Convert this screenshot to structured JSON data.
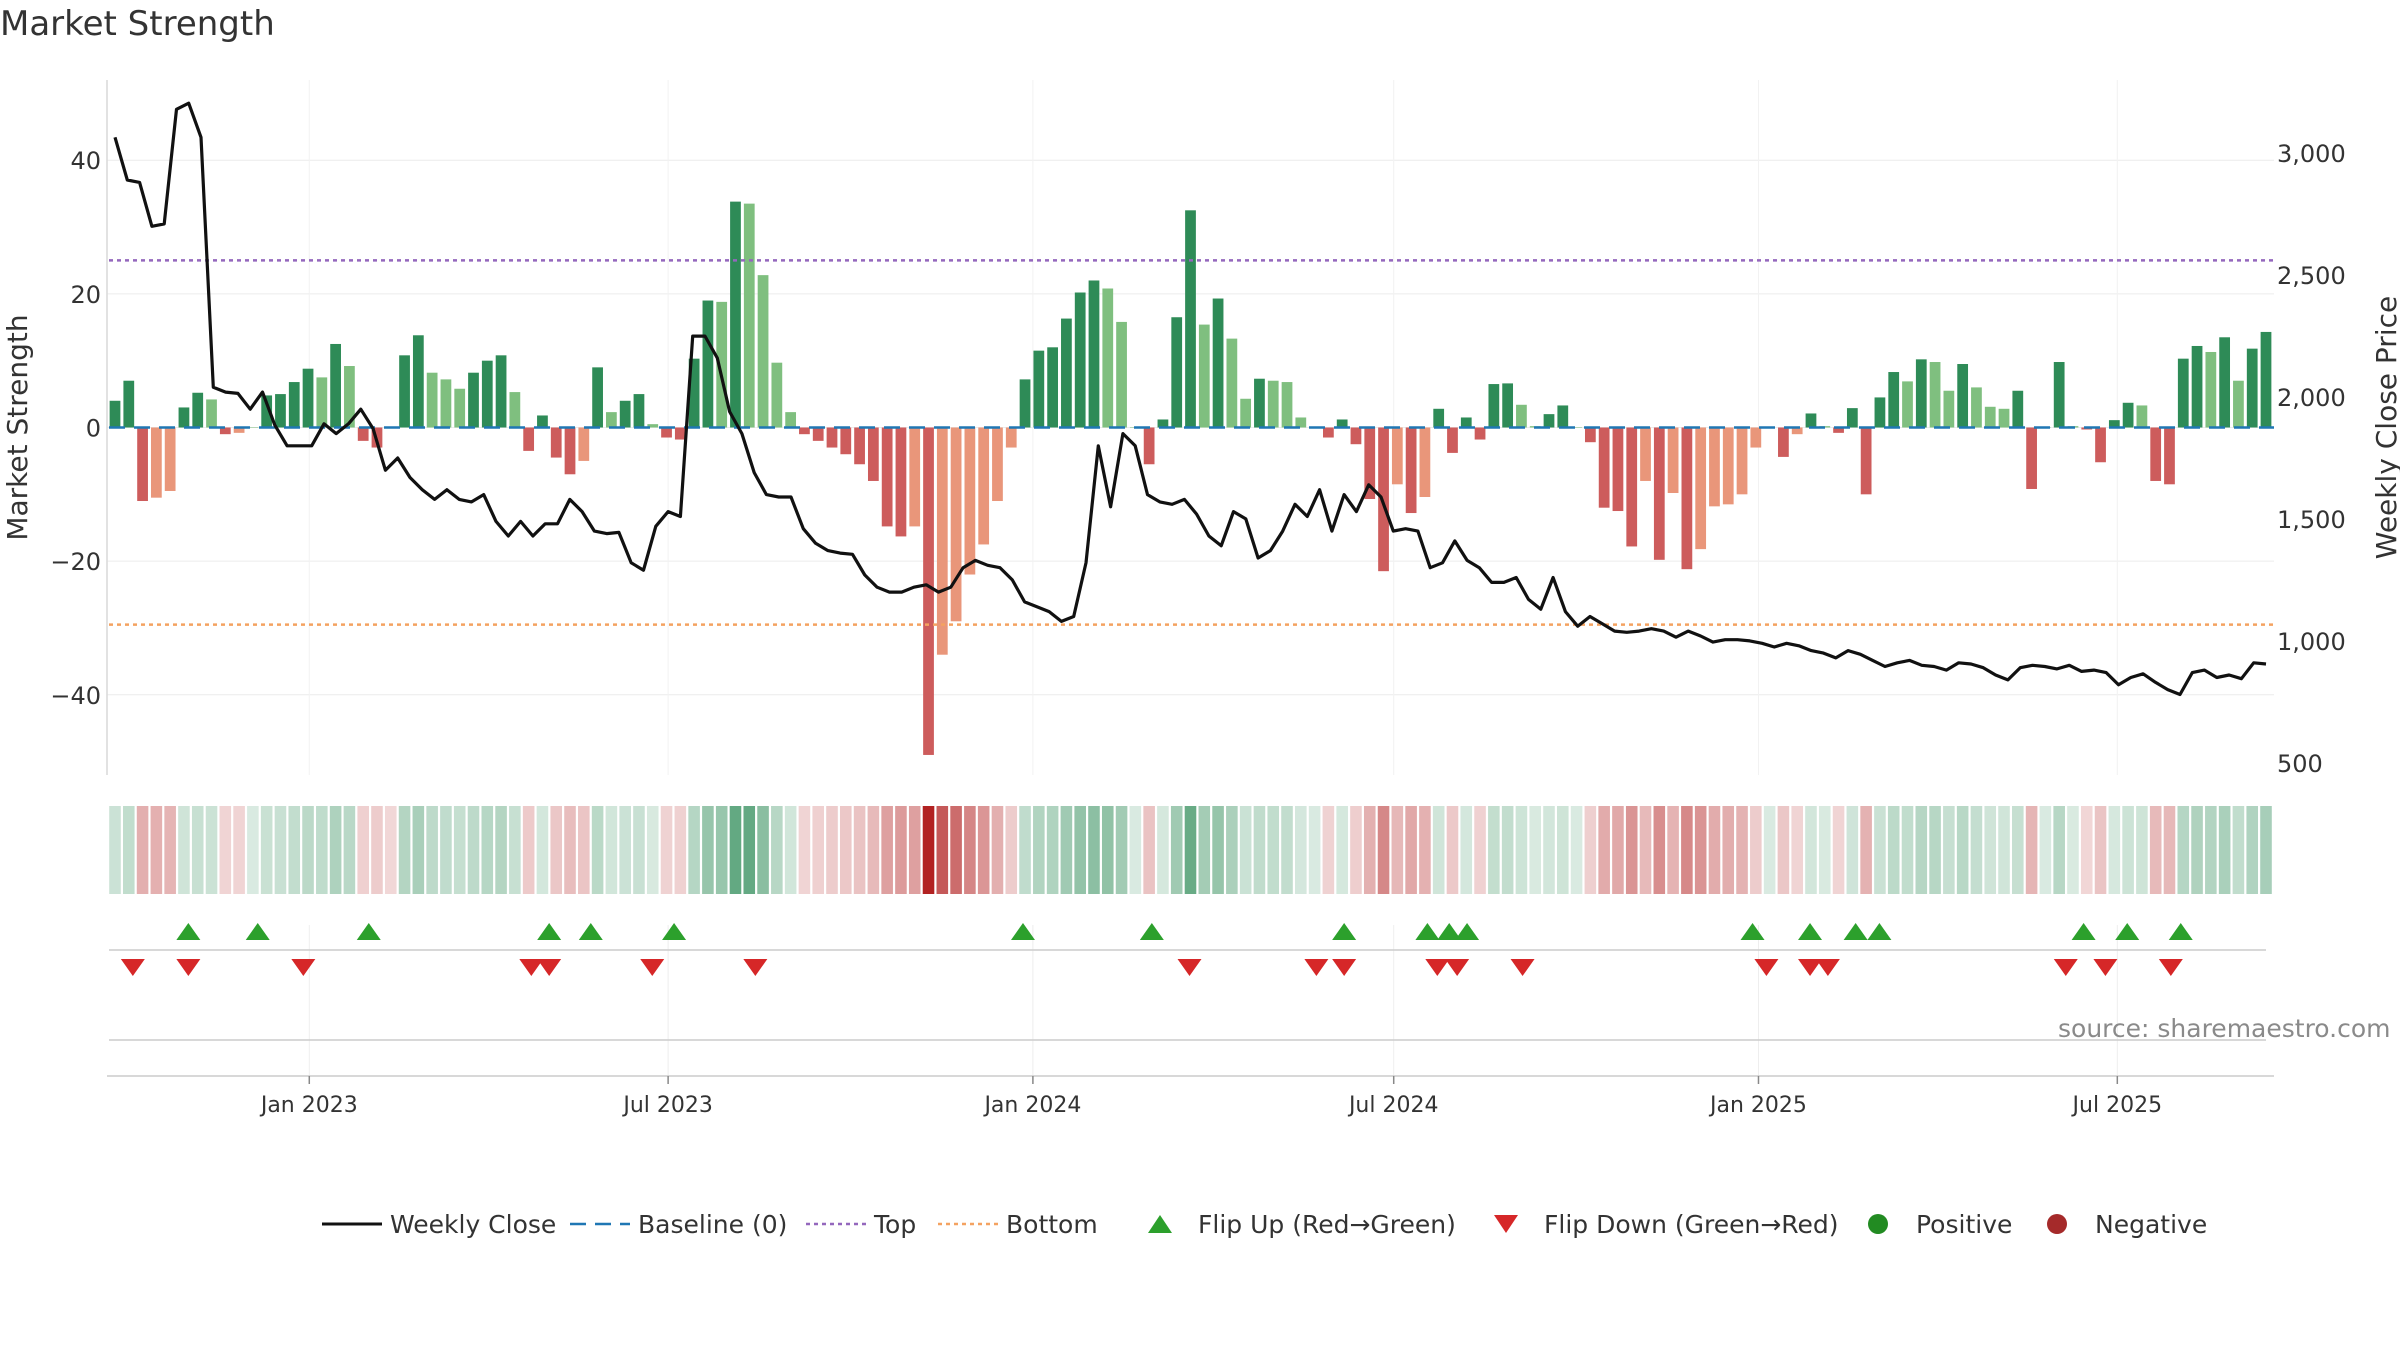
{
  "title": "Market Strength",
  "source": "source: sharemaestro.com",
  "colors": {
    "pos_strong": "#2e8b57",
    "pos_weak": "#7fbf7f",
    "neg_strong": "#cd5c5c",
    "neg_weak": "#e9967a",
    "price_line": "#111111",
    "baseline": "#1f77b4",
    "top": "#9467bd",
    "bottom": "#f4a261",
    "flip_up": "#2ca02c",
    "flip_down": "#d62728",
    "positive_dot": "#228b22",
    "negative_dot": "#a52a2a"
  },
  "legend": [
    {
      "key": "weekly_close",
      "label": "Weekly Close"
    },
    {
      "key": "baseline",
      "label": "Baseline (0)"
    },
    {
      "key": "top",
      "label": "Top"
    },
    {
      "key": "bottom",
      "label": "Bottom"
    },
    {
      "key": "flip_up",
      "label": "Flip Up (Red→Green)"
    },
    {
      "key": "flip_down",
      "label": "Flip Down (Green→Red)"
    },
    {
      "key": "positive",
      "label": "Positive"
    },
    {
      "key": "negative",
      "label": "Negative"
    }
  ],
  "chart_data": {
    "type": "bar",
    "title": "Market Strength",
    "ylabel": "Market Strength",
    "y2label": "Weekly Close Price",
    "ylim": [
      -52,
      52
    ],
    "y2lim": [
      450,
      3300
    ],
    "yticks": [
      -40,
      -20,
      0,
      20,
      40
    ],
    "yticklabels": [
      "−40",
      "−20",
      "0",
      "20",
      "40"
    ],
    "y2ticks": [
      500,
      1000,
      1500,
      2000,
      2500,
      3000
    ],
    "y2ticklabels": [
      "500",
      "1,000",
      "1,500",
      "2,000",
      "2,500",
      "3,000"
    ],
    "x_start": "2022-09-25",
    "x_end": "2025-09-14",
    "xticks": [
      "2023-01-01",
      "2023-07-01",
      "2024-01-01",
      "2024-07-01",
      "2025-01-01",
      "2025-07-01"
    ],
    "xticklabels": [
      "Jan 2023",
      "Jul 2023",
      "Jan 2024",
      "Jul 2024",
      "Jan 2025",
      "Jul 2025"
    ],
    "top_line": 25,
    "bottom_line": -29.5,
    "baseline": 0,
    "grid": true,
    "legend_position": "bottom",
    "strength_values": [
      4,
      7,
      -11,
      -10.5,
      -9.5,
      3,
      5.2,
      4.2,
      -1,
      -0.8,
      0,
      4.8,
      5,
      6.8,
      8.8,
      7.5,
      12.5,
      9.2,
      -2,
      -3,
      -0.1,
      10.8,
      13.8,
      8.2,
      7.2,
      5.8,
      8.2,
      10,
      10.8,
      5.3,
      -3.5,
      1.8,
      -4.5,
      -7,
      -5,
      9,
      2.3,
      4,
      5,
      0.5,
      -1.5,
      -1.8,
      10.3,
      19,
      18.8,
      33.8,
      33.5,
      22.8,
      9.7,
      2.3,
      -1,
      -2,
      -3,
      -4,
      -5.5,
      -8,
      -14.8,
      -16.3,
      -14.8,
      -49,
      -34,
      -29,
      -22,
      -17.5,
      -11,
      -3,
      7.2,
      11.5,
      12,
      16.3,
      20.2,
      22,
      20.8,
      15.8,
      0,
      -5.5,
      1.2,
      16.5,
      32.5,
      15.4,
      19.3,
      13.3,
      4.3,
      7.3,
      7,
      6.8,
      1.5,
      0,
      -1.5,
      1.2,
      -2.5,
      -10.7,
      -21.5,
      -8.5,
      -12.8,
      -10.4,
      2.8,
      -3.8,
      1.5,
      -1.8,
      6.5,
      6.6,
      3.4,
      0.2,
      2,
      3.3,
      0,
      -2.2,
      -12,
      -12.5,
      -17.8,
      -8,
      -19.8,
      -9.8,
      -21.2,
      -18.2,
      -11.8,
      -11.5,
      -10,
      -3,
      0,
      -4.4,
      -1,
      2.1,
      0.2,
      -0.8,
      2.9,
      -10,
      4.5,
      8.3,
      6.9,
      10.2,
      9.8,
      5.5,
      9.5,
      6,
      3.1,
      2.8,
      5.5,
      -9.2,
      0,
      9.8,
      0.2,
      -0.3,
      -5.2,
      1.1,
      3.7,
      3.3,
      -8,
      -8.5,
      10.3,
      12.2,
      11.3,
      13.5,
      7,
      11.8,
      14.3
    ],
    "weekly_close_values": [
      3065,
      2890,
      2880,
      2700,
      2710,
      3180,
      3205,
      3065,
      2040,
      2020,
      2015,
      1950,
      2020,
      1885,
      1800,
      1800,
      1800,
      1890,
      1850,
      1890,
      1950,
      1870,
      1700,
      1750,
      1670,
      1620,
      1580,
      1620,
      1580,
      1570,
      1600,
      1490,
      1430,
      1490,
      1430,
      1480,
      1480,
      1580,
      1530,
      1450,
      1440,
      1445,
      1320,
      1290,
      1470,
      1530,
      1510,
      2250,
      2250,
      2160,
      1940,
      1850,
      1690,
      1600,
      1590,
      1590,
      1460,
      1400,
      1370,
      1360,
      1355,
      1270,
      1220,
      1200,
      1200,
      1220,
      1230,
      1200,
      1220,
      1300,
      1330,
      1310,
      1300,
      1250,
      1160,
      1140,
      1120,
      1080,
      1100,
      1320,
      1800,
      1550,
      1850,
      1800,
      1600,
      1570,
      1560,
      1580,
      1520,
      1430,
      1390,
      1530,
      1500,
      1340,
      1370,
      1450,
      1560,
      1510,
      1620,
      1450,
      1600,
      1530,
      1640,
      1590,
      1450,
      1460,
      1450,
      1300,
      1320,
      1410,
      1330,
      1300,
      1240,
      1240,
      1260,
      1170,
      1130,
      1260,
      1120,
      1060,
      1100,
      1070,
      1040,
      1035,
      1040,
      1050,
      1040,
      1015,
      1040,
      1020,
      995,
      1005,
      1005,
      1000,
      990,
      975,
      990,
      980,
      960,
      950,
      930,
      960,
      945,
      920,
      895,
      910,
      920,
      900,
      895,
      880,
      910,
      905,
      890,
      860,
      840,
      890,
      900,
      895,
      885,
      900,
      875,
      880,
      870,
      820,
      850,
      865,
      830,
      800,
      780,
      870,
      880,
      850,
      860,
      845,
      910,
      905
    ],
    "flip_up_dates": [
      "2022-11-01",
      "2022-12-06",
      "2023-01-31",
      "2023-05-02",
      "2023-05-23",
      "2023-07-04",
      "2023-12-27",
      "2024-03-01",
      "2024-06-06",
      "2024-07-18",
      "2024-07-29",
      "2024-08-07",
      "2024-12-29",
      "2025-01-27",
      "2025-02-19",
      "2025-03-03",
      "2025-06-14",
      "2025-07-06",
      "2025-08-02"
    ],
    "flip_down_dates": [
      "2022-10-04",
      "2022-11-01",
      "2022-12-29",
      "2023-04-23",
      "2023-05-02",
      "2023-06-23",
      "2023-08-14",
      "2024-03-20",
      "2024-05-23",
      "2024-06-06",
      "2024-07-23",
      "2024-08-02",
      "2024-09-04",
      "2025-01-05",
      "2025-01-27",
      "2025-02-05",
      "2025-06-05",
      "2025-06-25",
      "2025-07-28"
    ]
  }
}
